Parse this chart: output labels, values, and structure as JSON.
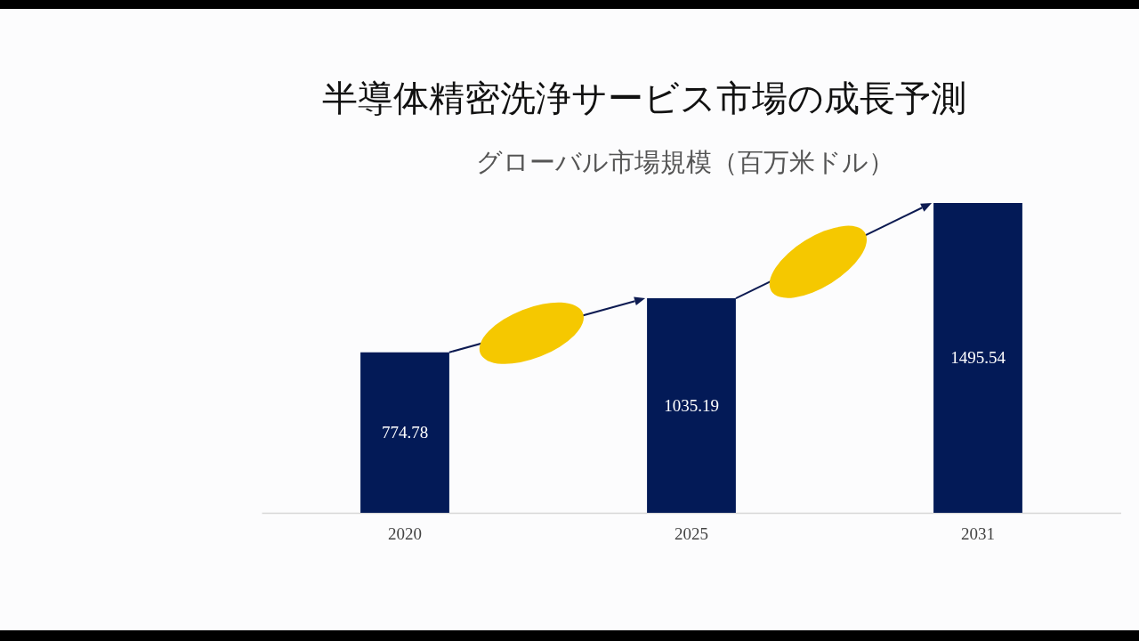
{
  "chart_data": {
    "type": "bar",
    "title": "半導体精密洗浄サービス市場の成長予測",
    "subtitle": "グローバル市場規模（百万米ドル）",
    "categories": [
      "2020",
      "2025",
      "2031"
    ],
    "values": [
      774.78,
      1035.19,
      1495.54
    ],
    "color": "#031a57",
    "data_labels": true,
    "tick_labels": "x"
  }
}
